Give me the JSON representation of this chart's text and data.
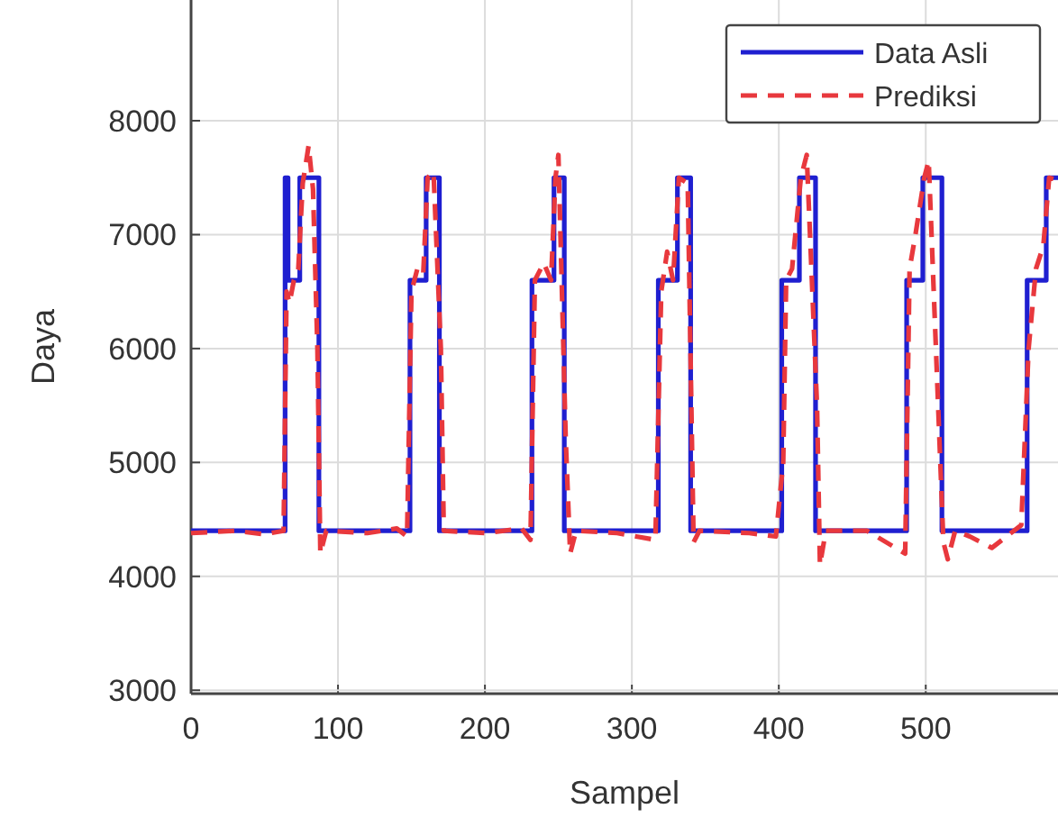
{
  "chart_data": {
    "type": "line",
    "xlabel": "Sampel",
    "ylabel": "Daya",
    "xlim": [
      0,
      590
    ],
    "ylim": [
      2970,
      9060
    ],
    "xticks": [
      0,
      100,
      200,
      300,
      400,
      500
    ],
    "yticks": [
      3000,
      4000,
      5000,
      6000,
      7000,
      8000
    ],
    "grid": true,
    "legend": "top right",
    "series": [
      {
        "name": "Data Asli",
        "color": "#1f1fd0",
        "line_style": "solid",
        "x": [
          0,
          64,
          64,
          66,
          66,
          74,
          74,
          87,
          87,
          149,
          149,
          160,
          160,
          169,
          169,
          232,
          232,
          247,
          247,
          254,
          254,
          318,
          318,
          331,
          331,
          340,
          340,
          402,
          402,
          414,
          414,
          425,
          425,
          487,
          487,
          498,
          498,
          511,
          511,
          569,
          569,
          582,
          582,
          590
        ],
        "values": [
          4400,
          4400,
          7500,
          7500,
          6600,
          6600,
          7500,
          7500,
          4400,
          4400,
          6600,
          6600,
          7500,
          7500,
          4400,
          4400,
          6600,
          6600,
          7500,
          7500,
          4400,
          4400,
          6600,
          6600,
          7500,
          7500,
          4400,
          4400,
          6600,
          6600,
          7500,
          7500,
          4400,
          4400,
          6600,
          6600,
          7500,
          7500,
          4400,
          4400,
          6600,
          6600,
          7500,
          7500
        ]
      },
      {
        "name": "Prediksi",
        "color": "#e8383d",
        "line_style": "dashed",
        "x": [
          0,
          30,
          50,
          63,
          65,
          67,
          70,
          73,
          76,
          80,
          83,
          86,
          88,
          92,
          120,
          140,
          147,
          150,
          154,
          158,
          161,
          165,
          170,
          172,
          200,
          225,
          231,
          234,
          240,
          245,
          248,
          250,
          255,
          258,
          262,
          290,
          316,
          320,
          324,
          328,
          332,
          338,
          342,
          346,
          380,
          398,
          403,
          405,
          409,
          415,
          419,
          426,
          428,
          432,
          460,
          486,
          489,
          493,
          499,
          502,
          512,
          515,
          520,
          530,
          545,
          565,
          570,
          575,
          580,
          584,
          590
        ],
        "values": [
          4380,
          4400,
          4370,
          4400,
          6500,
          6400,
          6600,
          6700,
          7450,
          7780,
          7400,
          6000,
          4200,
          4400,
          4380,
          4420,
          4350,
          6500,
          6700,
          6650,
          7500,
          7550,
          6000,
          4400,
          4380,
          4420,
          4320,
          6600,
          6750,
          6600,
          7500,
          7700,
          5200,
          4200,
          4400,
          4380,
          4320,
          6500,
          6850,
          6600,
          7500,
          7450,
          4300,
          4400,
          4380,
          4350,
          5000,
          6600,
          6700,
          7500,
          7700,
          5500,
          4100,
          4400,
          4400,
          4200,
          6700,
          7000,
          7500,
          7650,
          4300,
          4150,
          4400,
          4350,
          4250,
          4450,
          6000,
          6700,
          6900,
          7500,
          7480
        ]
      }
    ]
  }
}
